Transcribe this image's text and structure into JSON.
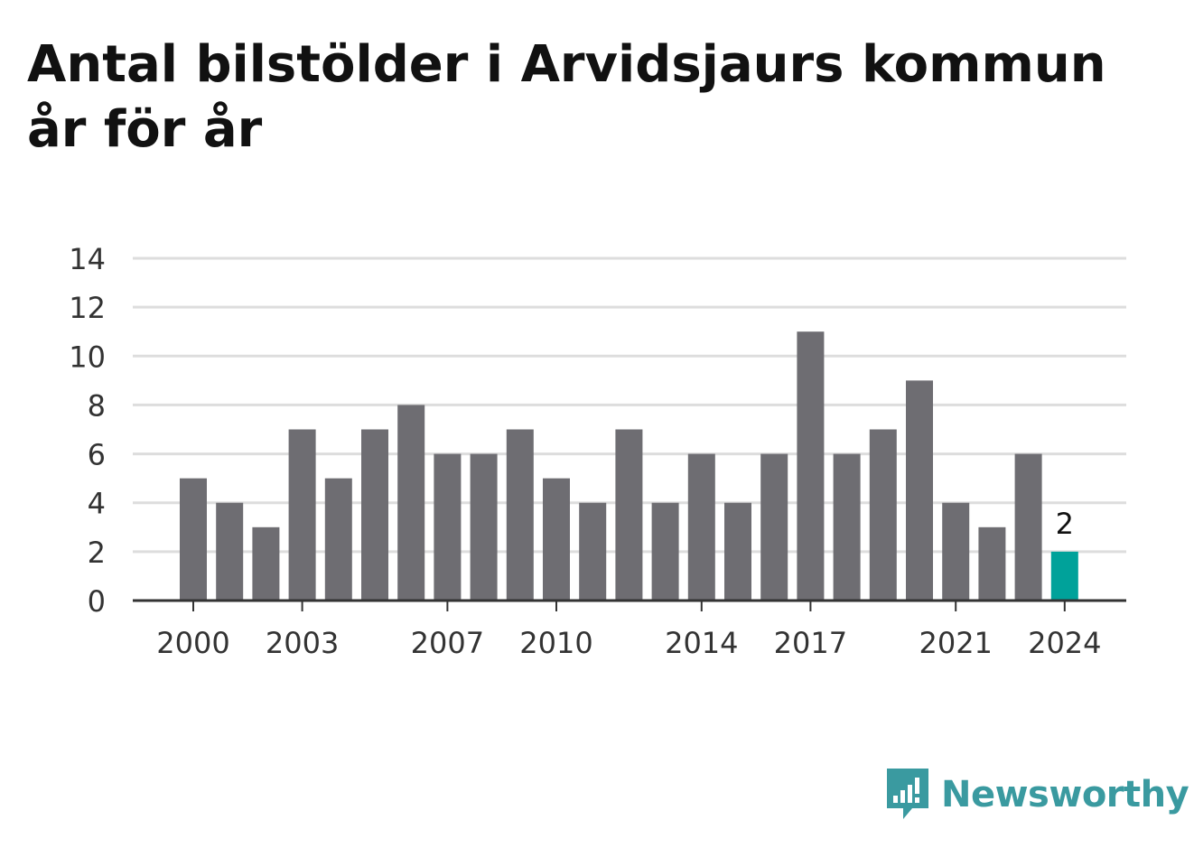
{
  "title": "Antal bilstölder i Arvidsjaurs kommun år för år",
  "brand": {
    "name": "Newsworthy",
    "color": "#3a9aa0",
    "icon": "bar-chart-speech-bubble-icon"
  },
  "colors": {
    "bar": "#6e6d72",
    "highlight": "#00a29a",
    "grid": "#dddddd",
    "axis": "#333333"
  },
  "chart_data": {
    "type": "bar",
    "title": "Antal bilstölder i Arvidsjaurs kommun år för år",
    "xlabel": "",
    "ylabel": "",
    "categories": [
      2000,
      2001,
      2002,
      2003,
      2004,
      2005,
      2006,
      2007,
      2008,
      2009,
      2010,
      2011,
      2012,
      2013,
      2014,
      2015,
      2016,
      2017,
      2018,
      2019,
      2020,
      2021,
      2022,
      2023,
      2024
    ],
    "values": [
      5,
      4,
      3,
      7,
      5,
      7,
      8,
      6,
      6,
      7,
      5,
      4,
      7,
      4,
      6,
      4,
      6,
      11,
      6,
      7,
      9,
      4,
      3,
      6,
      2
    ],
    "ylim": [
      0,
      14
    ],
    "yticks": [
      0,
      2,
      4,
      6,
      8,
      10,
      12,
      14
    ],
    "xtick_labels": [
      2000,
      2003,
      2007,
      2010,
      2014,
      2017,
      2021,
      2024
    ],
    "highlight": {
      "category": 2024,
      "value": 2,
      "label": "2"
    },
    "grid": true,
    "legend": "none"
  }
}
